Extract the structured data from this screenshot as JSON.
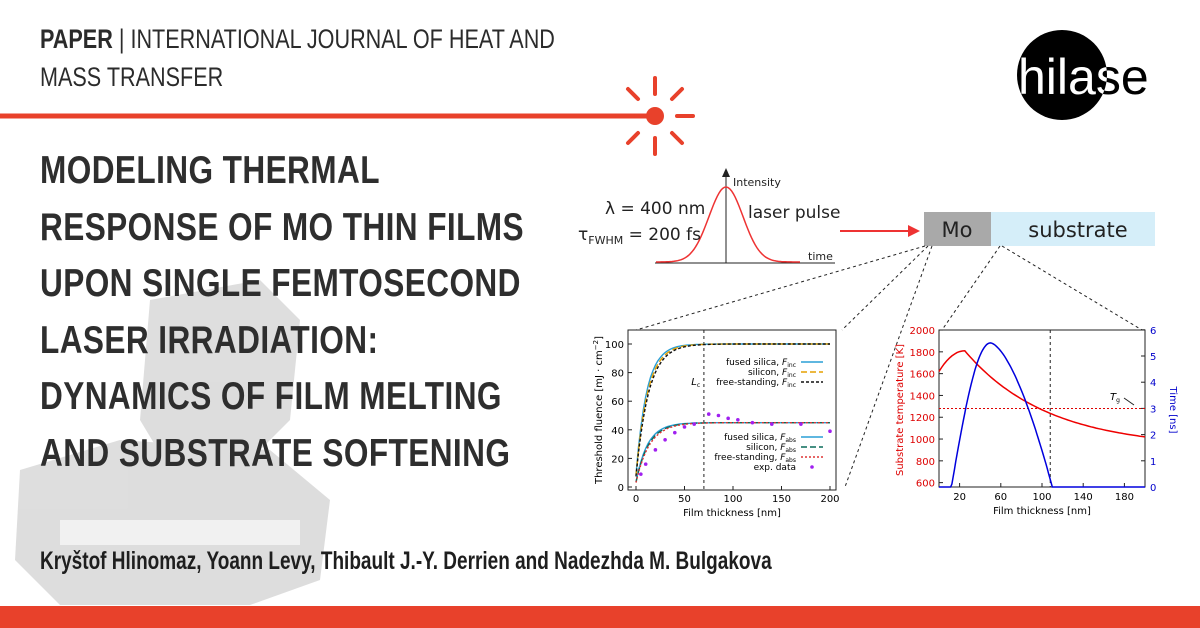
{
  "header": {
    "label": "PAPER",
    "journal": "| INTERNATIONAL JOURNAL OF HEAT AND MASS TRANSFER"
  },
  "logo": "hilase",
  "title": "MODELING THERMAL RESPONSE OF MO THIN FILMS UPON SINGLE FEMTOSECOND LASER IRRADIATION: DYNAMICS OF FILM MELTING AND SUBSTRATE SOFTENING",
  "authors": "Kryštof Hlinomaz, Yoann Levy, Thibault J.-Y. Derrien and Nadezhda M. Bulgakova",
  "figure": {
    "pulse": {
      "wavelength": "λ = 400 nm",
      "duration": {
        "symbol": "τ",
        "subscript": "FWHM",
        "text": " = 200 fs"
      },
      "y_axis": "Intensity",
      "x_axis": "time",
      "label": "laser pulse"
    },
    "sample": {
      "film": "Mo",
      "substrate": "substrate"
    },
    "left_plot": {
      "y_label": {
        "text": "Threshold fluence [mJ · cm",
        "superscript": "−2",
        "end": "]"
      },
      "x_label": "Film thickness [nm]",
      "xticks": [
        0,
        50,
        100,
        150,
        200
      ],
      "yticks": [
        0,
        20,
        40,
        60,
        80,
        100
      ],
      "marker": {
        "symbol": "L",
        "subscript": "c"
      },
      "legend_inc": [
        {
          "text": "fused silica, ",
          "symbol": "F",
          "subscript": "inc"
        },
        {
          "text": "silicon, ",
          "symbol": "F",
          "subscript": "inc"
        },
        {
          "text": "free-standing, ",
          "symbol": "F",
          "subscript": "inc"
        }
      ],
      "legend_abs": [
        {
          "text": "fused silica, ",
          "symbol": "F",
          "subscript": "abs"
        },
        {
          "text": "silicon, ",
          "symbol": "F",
          "subscript": "abs"
        },
        {
          "text": "free-standing, ",
          "symbol": "F",
          "subscript": "abs"
        },
        {
          "text": "exp. data"
        }
      ]
    },
    "right_plot": {
      "y_label": "Substrate temperature [K]",
      "y2_label": "Time [ns]",
      "x_label": "Film thickness [nm]",
      "xticks": [
        20,
        60,
        100,
        140,
        180
      ],
      "yticks": [
        600,
        800,
        1000,
        1200,
        1400,
        1600,
        1800,
        2000
      ],
      "y2ticks": [
        0,
        1,
        2,
        3,
        4,
        5,
        6
      ],
      "marker": {
        "symbol": "T",
        "subscript": "g"
      }
    }
  }
}
